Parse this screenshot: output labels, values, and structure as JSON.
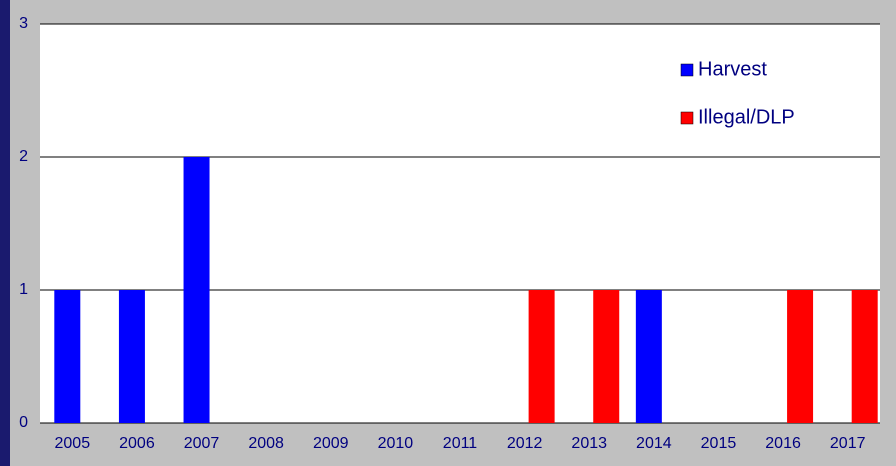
{
  "chart_data": {
    "type": "bar",
    "categories": [
      "2005",
      "2006",
      "2007",
      "2008",
      "2009",
      "2010",
      "2011",
      "2012",
      "2013",
      "2014",
      "2015",
      "2016",
      "2017"
    ],
    "series": [
      {
        "name": "Harvest",
        "color": "#0000ff",
        "values": [
          1,
          1,
          2,
          0,
          0,
          0,
          0,
          0,
          0,
          1,
          0,
          0,
          0
        ]
      },
      {
        "name": "Illegal/DLP",
        "color": "#ff0000",
        "values": [
          0,
          0,
          0,
          0,
          0,
          0,
          0,
          1,
          1,
          0,
          0,
          1,
          1
        ]
      }
    ],
    "ylim": [
      0,
      3
    ],
    "yticks": [
      0,
      1,
      2,
      3
    ],
    "grid": true,
    "legend": "top-right"
  }
}
